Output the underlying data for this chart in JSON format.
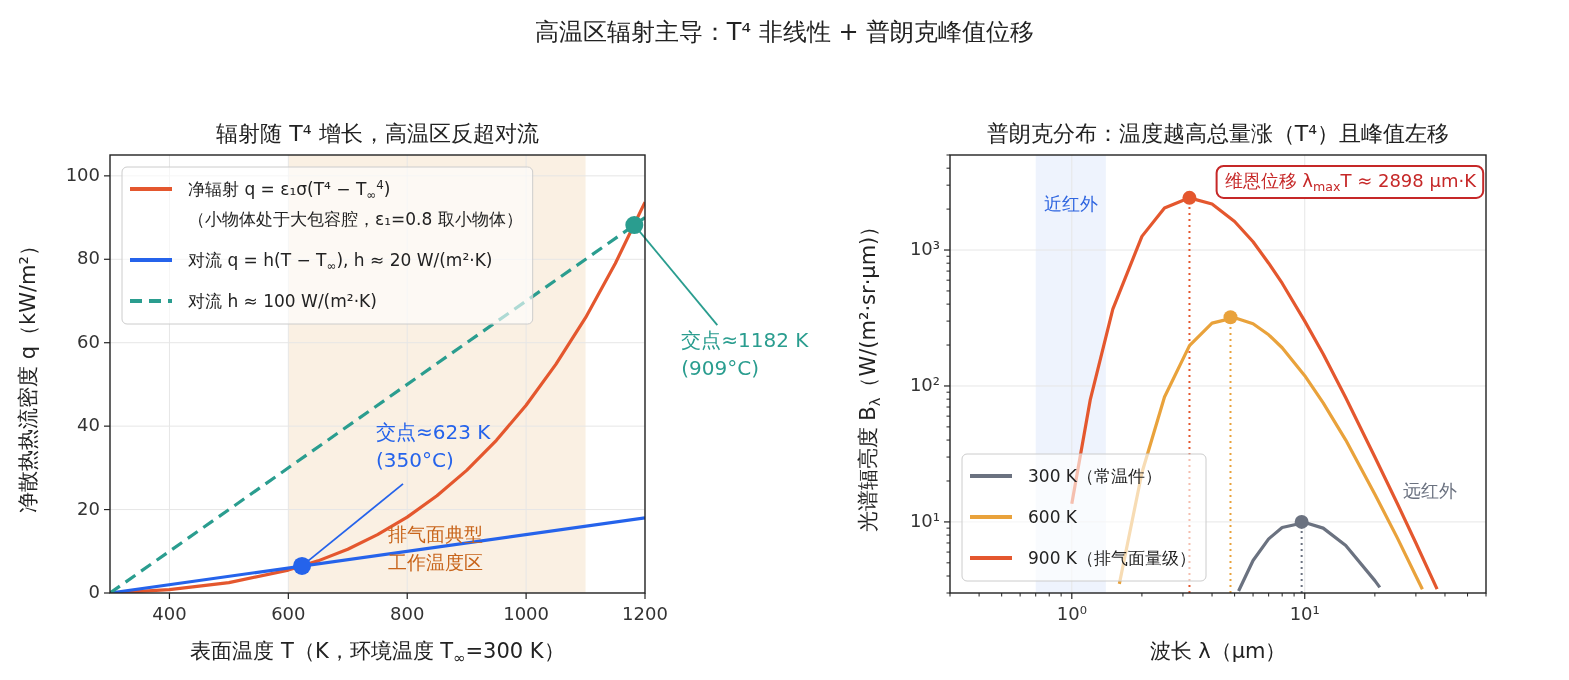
{
  "chart_data": [
    {
      "type": "line",
      "title": "辐射随 T⁴ 增长，高温区反超对流",
      "xlabel": "表面温度 T（K，环境温度 T$_{∞}$=300 K）",
      "ylabel": "净散热热流密度 q（kW/m²）",
      "xlim": [
        300,
        1200
      ],
      "ylim": [
        0,
        105
      ],
      "xticks": [
        400,
        600,
        800,
        1000,
        1200
      ],
      "yticks": [
        0,
        20,
        40,
        60,
        80,
        100
      ],
      "grid": true,
      "legend": "top left",
      "series": [
        {
          "name": "净辐射 q = ε₁σ(T⁴ − T$_{∞}$$^{4}$)\n（小物体处于大包容腔，ε₁=0.8 取小物体）",
          "color": "#e4572e",
          "line_style": "solid",
          "x": [
            300,
            400,
            500,
            600,
            650,
            700,
            750,
            800,
            850,
            900,
            950,
            1000,
            1050,
            1100,
            1150,
            1200
          ],
          "values": [
            0,
            0.8,
            2.5,
            5.5,
            7.7,
            10.5,
            14.0,
            18.2,
            23.3,
            29.4,
            36.6,
            45.0,
            54.8,
            66.0,
            79.0,
            93.7
          ]
        },
        {
          "name": "对流 q = h(T − T$_{∞}$), h ≈ 20 W/(m²·K)",
          "color": "#2563eb",
          "line_style": "solid",
          "x": [
            300,
            1200
          ],
          "values": [
            0,
            18
          ]
        },
        {
          "name": "对流 h ≈ 100 W/(m²·K)",
          "color": "#2a9d8f",
          "line_style": "dashed",
          "x": [
            300,
            1200
          ],
          "values": [
            0,
            90
          ]
        }
      ],
      "bands": [
        {
          "axis": "x",
          "from": 600,
          "to": 1100,
          "label": "排气面典型工作温度区",
          "color": "#faf0e3"
        }
      ],
      "annotations": [
        "高温区辐射主导：T⁴ 非线性 + 普朗克峰值位移",
        {
          "text": "交点≈623 K\n(350°C)",
          "x": 623,
          "y": 6.5
        },
        {
          "text": "交点≈1182 K\n(909°C)",
          "x": 1182,
          "y": 88.2
        }
      ]
    },
    {
      "type": "line",
      "title": "普朗克分布：温度越高总量涨（T⁴）且峰值左移",
      "xlabel": "波长 λ（μm）",
      "ylabel": "光谱辐亮度 B$_{λ}$（W/(m²·sr·μm)）",
      "log": "xy",
      "xlim": [
        0.3,
        60
      ],
      "ylim": [
        3,
        5000
      ],
      "xticks": [
        {
          "value": 1,
          "label": "10⁰"
        },
        {
          "value": 10,
          "label": "10¹"
        }
      ],
      "yticks": [
        {
          "value": 10,
          "label": "10¹"
        },
        {
          "value": 100,
          "label": "10²"
        },
        {
          "value": 1000,
          "label": "10³"
        }
      ],
      "grid": true,
      "legend": "bottom left",
      "series": [
        {
          "name": "300 K（常温件）",
          "color": "#6b7280",
          "line_style": "solid",
          "x": [
            5.2,
            6,
            7,
            8,
            10,
            12,
            15,
            20,
            21
          ],
          "values": [
            3.1,
            5.2,
            7.5,
            9.1,
            9.9,
            9.0,
            6.7,
            3.7,
            3.3
          ]
        },
        {
          "name": "600 K",
          "color": "#e9a23b",
          "line_style": "solid",
          "x": [
            1.6,
            2,
            2.5,
            3.2,
            4,
            5,
            6,
            7,
            8,
            10,
            12,
            15,
            20,
            25,
            30,
            32
          ],
          "values": [
            3.5,
            23,
            83,
            198,
            290,
            318,
            287,
            238,
            191,
            119,
            75,
            40,
            16,
            7.6,
            4.0,
            3.2
          ]
        },
        {
          "name": "900 K（排气面量级）",
          "color": "#e4572e",
          "line_style": "solid",
          "x": [
            1,
            1.2,
            1.5,
            2,
            2.5,
            3.2,
            4,
            5,
            6,
            7,
            8,
            10,
            12,
            15,
            20,
            25,
            30,
            37
          ],
          "values": [
            13.6,
            79,
            368,
            1260,
            2040,
            2420,
            2180,
            1620,
            1150,
            800,
            570,
            300,
            172,
            82,
            30,
            13.6,
            7.0,
            3.2
          ]
        },
        {
          "type": "scatter",
          "marker": "circle",
          "colors": [
            "#6b7280",
            "#e9a23b",
            "#e4572e"
          ],
          "x": [
            9.7,
            4.8,
            3.2
          ],
          "values": [
            10,
            320,
            2420
          ]
        }
      ],
      "ref_lines": [
        {
          "axis": "x",
          "value": 9.7,
          "color": "#6b7280",
          "line_style": "dotted"
        },
        {
          "axis": "x",
          "value": 4.8,
          "color": "#e9a23b",
          "line_style": "dotted"
        },
        {
          "axis": "x",
          "value": 3.2,
          "color": "#e4572e",
          "line_style": "dotted"
        }
      ],
      "bands": [
        {
          "axis": "x",
          "from": 0.7,
          "to": 1.4,
          "label": "近红外",
          "color": "#eef3fd"
        }
      ],
      "annotations": [
        "维恩位移 λ$_{max}$T ≈ 2898 μm·K",
        "远红外"
      ]
    }
  ]
}
